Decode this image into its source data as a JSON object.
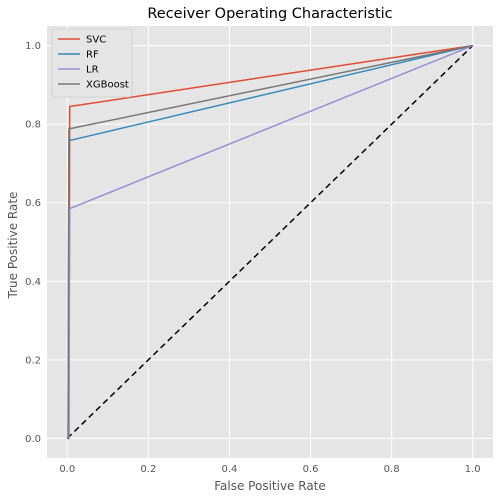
{
  "chart_data": {
    "type": "line",
    "title": "Receiver Operating Characteristic",
    "xlabel": "False Positive Rate",
    "ylabel": "True Positive Rate",
    "xlim": [
      -0.05,
      1.05
    ],
    "ylim": [
      -0.05,
      1.05
    ],
    "xticks": [
      0.0,
      0.2,
      0.4,
      0.6,
      0.8,
      1.0
    ],
    "yticks": [
      0.0,
      0.2,
      0.4,
      0.6,
      0.8,
      1.0
    ],
    "xtick_labels": [
      "0.0",
      "0.2",
      "0.4",
      "0.6",
      "0.8",
      "1.0"
    ],
    "ytick_labels": [
      "0.0",
      "0.2",
      "0.4",
      "0.6",
      "0.8",
      "1.0"
    ],
    "grid": true,
    "legend_position": "upper-left",
    "series": [
      {
        "name": "SVC",
        "color": "#E24A33",
        "x": [
          0.0,
          0.004,
          0.006,
          1.0
        ],
        "y": [
          0.0,
          0.0,
          0.845,
          1.0
        ]
      },
      {
        "name": "RF",
        "color": "#348ABD",
        "x": [
          0.0,
          0.002,
          0.004,
          1.0
        ],
        "y": [
          0.0,
          0.0,
          0.758,
          1.0
        ]
      },
      {
        "name": "LR",
        "color": "#988ED5",
        "x": [
          0.0,
          0.004,
          0.006,
          1.0
        ],
        "y": [
          0.0,
          0.0,
          0.585,
          1.0
        ]
      },
      {
        "name": "XGBoost",
        "color": "#777777",
        "x": [
          0.0,
          0.002,
          0.004,
          1.0
        ],
        "y": [
          0.0,
          0.0,
          0.788,
          1.0
        ]
      }
    ],
    "reference_line": {
      "style": "dashed",
      "color": "#000000",
      "x": [
        0.0,
        1.0
      ],
      "y": [
        0.0,
        1.0
      ]
    }
  },
  "colors": {
    "plot_background": "#E5E5E5",
    "grid": "#ffffff",
    "tick_text": "#555555"
  }
}
